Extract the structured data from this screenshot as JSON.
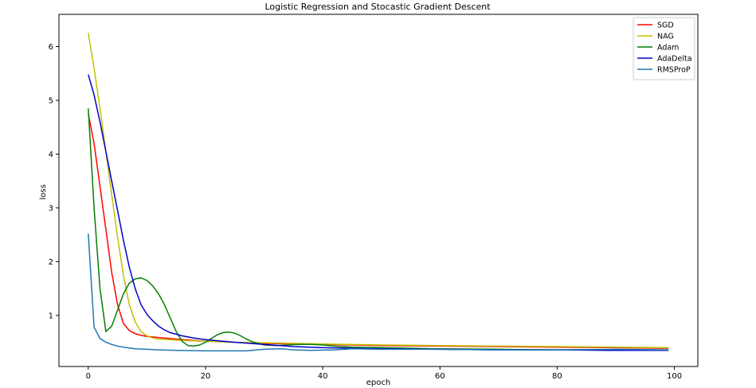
{
  "chart_data": {
    "type": "line",
    "title": "Logistic Regression and Stocastic Gradient Descent",
    "xlabel": "epoch",
    "ylabel": "loss",
    "xlim": [
      -5,
      104
    ],
    "ylim": [
      0.05,
      6.6
    ],
    "xticks": [
      0,
      20,
      40,
      60,
      80,
      100
    ],
    "yticks": [
      1,
      2,
      3,
      4,
      5,
      6
    ],
    "grid": false,
    "legend_position": "top-right",
    "series": [
      {
        "name": "SGD",
        "color": "#ff0000",
        "x": [
          0,
          1,
          2,
          3,
          4,
          5,
          6,
          7,
          8,
          9,
          10,
          12,
          15,
          20,
          25,
          30,
          40,
          50,
          60,
          70,
          80,
          90,
          99
        ],
        "y": [
          4.75,
          4.2,
          3.4,
          2.6,
          1.8,
          1.2,
          0.85,
          0.72,
          0.66,
          0.63,
          0.61,
          0.59,
          0.56,
          0.52,
          0.5,
          0.48,
          0.46,
          0.44,
          0.43,
          0.42,
          0.41,
          0.4,
          0.39
        ]
      },
      {
        "name": "NAG",
        "color": "#bfbf00",
        "x": [
          0,
          1,
          2,
          3,
          4,
          5,
          6,
          7,
          8,
          9,
          10,
          11,
          12,
          15,
          20,
          25,
          30,
          40,
          50,
          60,
          70,
          80,
          90,
          99
        ],
        "y": [
          6.25,
          5.6,
          4.85,
          4.05,
          3.25,
          2.45,
          1.75,
          1.2,
          0.88,
          0.7,
          0.62,
          0.58,
          0.56,
          0.54,
          0.52,
          0.5,
          0.49,
          0.47,
          0.45,
          0.44,
          0.43,
          0.42,
          0.41,
          0.4
        ]
      },
      {
        "name": "Adam",
        "color": "#008000",
        "x": [
          0,
          1,
          2,
          3,
          4,
          5,
          6,
          7,
          8,
          9,
          10,
          11,
          12,
          13,
          14,
          15,
          16,
          17,
          18,
          19,
          20,
          21,
          22,
          23,
          24,
          25,
          26,
          27,
          28,
          30,
          32,
          34,
          36,
          38,
          40,
          42,
          45,
          50,
          55,
          60,
          70,
          80,
          90,
          99
        ],
        "y": [
          4.85,
          3.0,
          1.5,
          0.7,
          0.8,
          1.1,
          1.4,
          1.6,
          1.68,
          1.7,
          1.65,
          1.55,
          1.4,
          1.2,
          0.95,
          0.7,
          0.52,
          0.44,
          0.43,
          0.45,
          0.5,
          0.57,
          0.64,
          0.68,
          0.69,
          0.67,
          0.62,
          0.56,
          0.51,
          0.45,
          0.44,
          0.45,
          0.46,
          0.46,
          0.45,
          0.43,
          0.41,
          0.4,
          0.39,
          0.38,
          0.37,
          0.36,
          0.36,
          0.35
        ]
      },
      {
        "name": "AdaDelta",
        "color": "#0000cc",
        "x": [
          0,
          1,
          2,
          3,
          4,
          5,
          6,
          7,
          8,
          9,
          10,
          11,
          12,
          13,
          14,
          15,
          16,
          18,
          20,
          25,
          30,
          35,
          40,
          50,
          60,
          70,
          80,
          90,
          99
        ],
        "y": [
          5.48,
          5.1,
          4.6,
          4.05,
          3.5,
          2.95,
          2.4,
          1.9,
          1.5,
          1.2,
          1.02,
          0.9,
          0.8,
          0.73,
          0.68,
          0.65,
          0.62,
          0.58,
          0.55,
          0.5,
          0.46,
          0.42,
          0.4,
          0.38,
          0.37,
          0.36,
          0.36,
          0.35,
          0.35
        ]
      },
      {
        "name": "RMSProP",
        "color": "#1f77b4",
        "x": [
          0,
          1,
          2,
          3,
          4,
          5,
          6,
          8,
          10,
          12,
          15,
          20,
          25,
          27,
          30,
          33,
          35,
          38,
          42,
          45,
          50,
          60,
          70,
          80,
          90,
          99
        ],
        "y": [
          2.52,
          0.78,
          0.57,
          0.5,
          0.46,
          0.43,
          0.41,
          0.38,
          0.37,
          0.36,
          0.35,
          0.34,
          0.34,
          0.34,
          0.37,
          0.38,
          0.36,
          0.35,
          0.36,
          0.38,
          0.37,
          0.37,
          0.36,
          0.36,
          0.37,
          0.36
        ]
      }
    ]
  }
}
